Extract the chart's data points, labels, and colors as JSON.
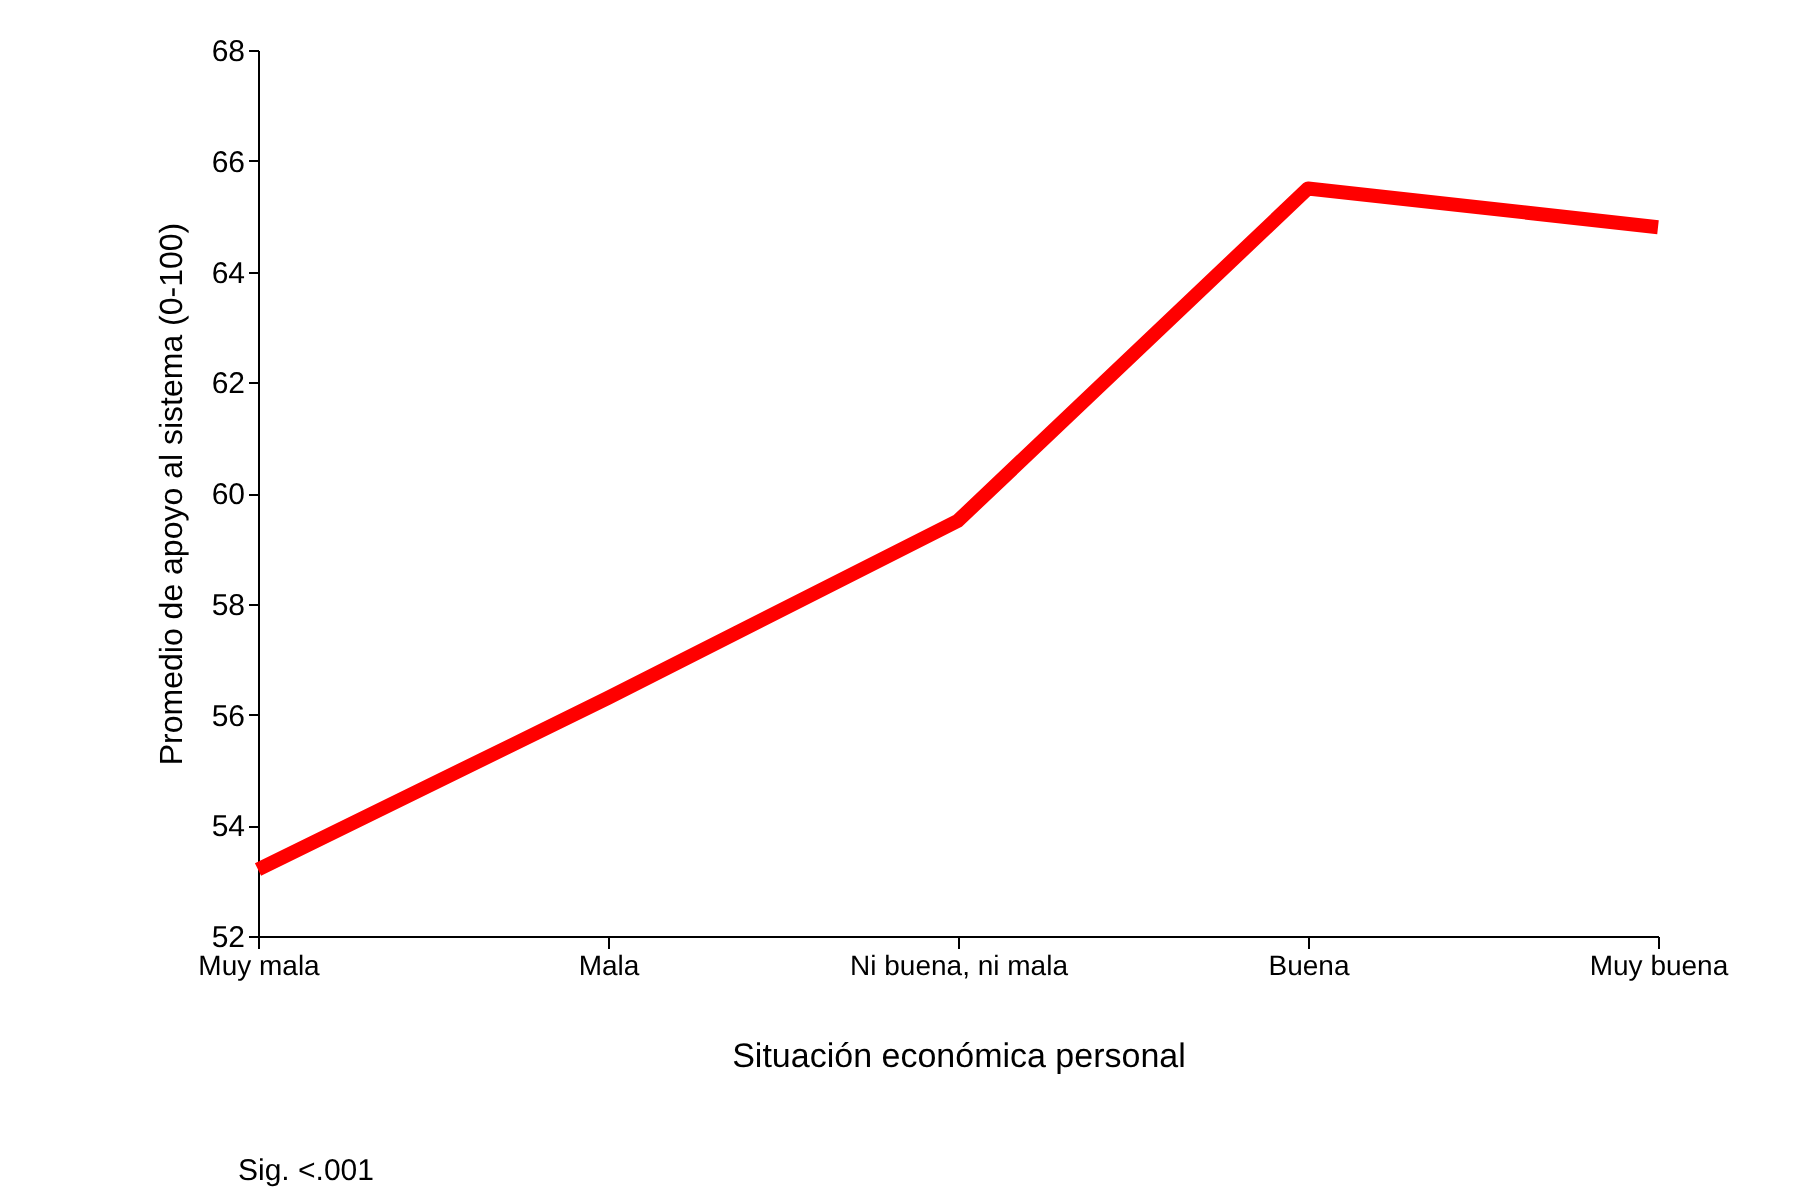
{
  "chart_data": {
    "type": "line",
    "xlabel": "Situación económica personal",
    "ylabel": "Promedio de apoyo al sistema (0-100)",
    "categories": [
      "Muy mala",
      "Mala",
      "Ni buena, ni mala",
      "Buena",
      "Muy buena"
    ],
    "series": [
      {
        "color": "#ff0000",
        "values": [
          53.2,
          56.3,
          59.5,
          65.5,
          64.8
        ]
      }
    ],
    "ylim": [
      52,
      68
    ],
    "yticks": [
      52,
      54,
      56,
      58,
      60,
      62,
      64,
      66,
      68
    ],
    "grid": false,
    "annotations": [
      "Sig. <.001"
    ]
  }
}
